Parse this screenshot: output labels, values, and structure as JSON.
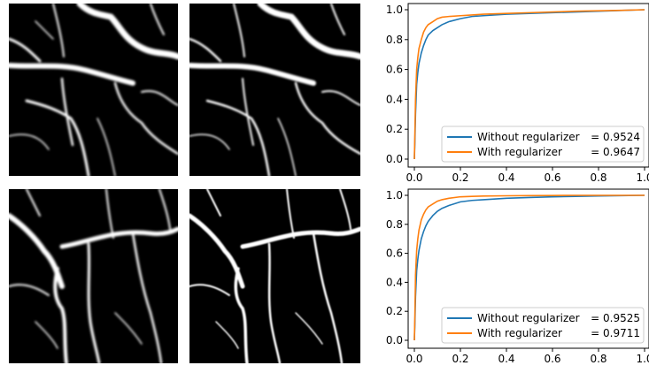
{
  "images": [
    {
      "name": "vessel-map-top-left"
    },
    {
      "name": "vessel-map-top-right"
    },
    {
      "name": "vessel-map-bottom-left"
    },
    {
      "name": "vessel-map-bottom-right"
    }
  ],
  "chart_data": [
    {
      "type": "line",
      "title": "",
      "xlabel": "",
      "ylabel": "",
      "xlim": [
        0,
        1
      ],
      "ylim": [
        0,
        1
      ],
      "xticks": [
        "0.0",
        "0.2",
        "0.4",
        "0.6",
        "0.8",
        "1.0"
      ],
      "yticks": [
        "0.0",
        "0.2",
        "0.4",
        "0.6",
        "0.8",
        "1.0"
      ],
      "grid": false,
      "legend_position": "bottom-right",
      "series": [
        {
          "name": "Without regularizer",
          "score": "= 0.9524",
          "color": "#1f77b4",
          "x": [
            0,
            0.002,
            0.005,
            0.01,
            0.015,
            0.02,
            0.03,
            0.04,
            0.05,
            0.06,
            0.08,
            0.1,
            0.12,
            0.15,
            0.2,
            0.25,
            0.3,
            0.4,
            0.5,
            0.6,
            0.7,
            0.8,
            0.9,
            1.0
          ],
          "y": [
            0,
            0.1,
            0.3,
            0.5,
            0.58,
            0.64,
            0.71,
            0.76,
            0.8,
            0.83,
            0.86,
            0.88,
            0.9,
            0.92,
            0.94,
            0.955,
            0.96,
            0.97,
            0.975,
            0.98,
            0.985,
            0.99,
            0.995,
            1.0
          ]
        },
        {
          "name": "With regularizer",
          "score": "= 0.9647",
          "color": "#ff7f0e",
          "x": [
            0,
            0.002,
            0.005,
            0.01,
            0.015,
            0.02,
            0.03,
            0.04,
            0.05,
            0.06,
            0.08,
            0.1,
            0.12,
            0.15,
            0.2,
            0.25,
            0.3,
            0.4,
            0.5,
            0.6,
            0.7,
            0.8,
            0.9,
            1.0
          ],
          "y": [
            0,
            0.15,
            0.4,
            0.6,
            0.68,
            0.74,
            0.8,
            0.85,
            0.88,
            0.9,
            0.92,
            0.94,
            0.95,
            0.955,
            0.96,
            0.965,
            0.97,
            0.975,
            0.98,
            0.985,
            0.99,
            0.993,
            0.996,
            1.0
          ]
        }
      ]
    },
    {
      "type": "line",
      "title": "",
      "xlabel": "",
      "ylabel": "",
      "xlim": [
        0,
        1
      ],
      "ylim": [
        0,
        1
      ],
      "xticks": [
        "0.0",
        "0.2",
        "0.4",
        "0.6",
        "0.8",
        "1.0"
      ],
      "yticks": [
        "0.0",
        "0.2",
        "0.4",
        "0.6",
        "0.8",
        "1.0"
      ],
      "grid": false,
      "legend_position": "bottom-right",
      "series": [
        {
          "name": "Without regularizer",
          "score": "= 0.9525",
          "color": "#1f77b4",
          "x": [
            0,
            0.002,
            0.005,
            0.01,
            0.015,
            0.02,
            0.03,
            0.04,
            0.05,
            0.06,
            0.08,
            0.1,
            0.12,
            0.15,
            0.2,
            0.25,
            0.3,
            0.4,
            0.5,
            0.6,
            0.7,
            0.8,
            0.9,
            1.0
          ],
          "y": [
            0,
            0.1,
            0.3,
            0.48,
            0.56,
            0.62,
            0.7,
            0.75,
            0.79,
            0.82,
            0.86,
            0.89,
            0.91,
            0.93,
            0.955,
            0.965,
            0.97,
            0.98,
            0.985,
            0.99,
            0.993,
            0.996,
            0.998,
            1.0
          ]
        },
        {
          "name": "With regularizer",
          "score": "= 0.9711",
          "color": "#ff7f0e",
          "x": [
            0,
            0.002,
            0.005,
            0.01,
            0.015,
            0.02,
            0.03,
            0.04,
            0.05,
            0.06,
            0.08,
            0.1,
            0.12,
            0.15,
            0.2,
            0.25,
            0.3,
            0.4,
            0.5,
            0.6,
            0.7,
            0.8,
            0.9,
            1.0
          ],
          "y": [
            0,
            0.15,
            0.45,
            0.62,
            0.7,
            0.76,
            0.83,
            0.87,
            0.9,
            0.92,
            0.94,
            0.96,
            0.97,
            0.98,
            0.99,
            0.993,
            0.995,
            0.997,
            0.998,
            0.999,
            1.0,
            1.0,
            1.0,
            1.0
          ]
        }
      ]
    }
  ]
}
